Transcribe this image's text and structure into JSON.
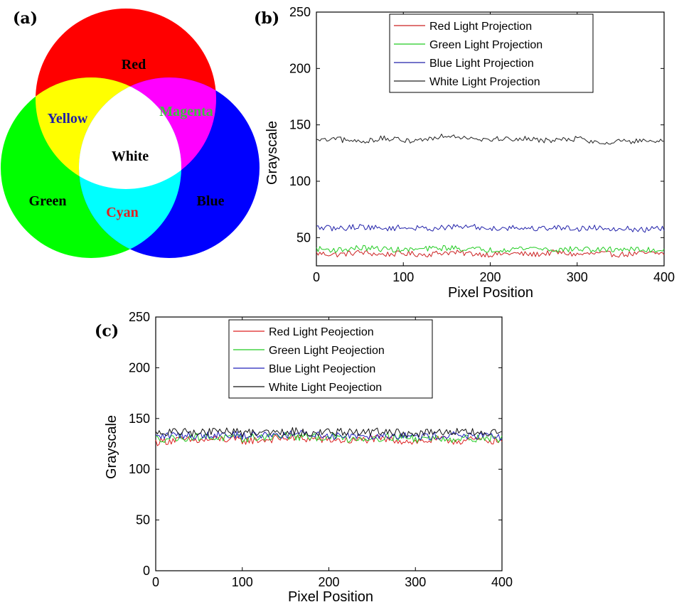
{
  "panel_labels": {
    "a": "(a)",
    "b": "(b)",
    "c": "(c)"
  },
  "venn": {
    "labels": {
      "red": "Red",
      "green": "Green",
      "blue": "Blue",
      "yellow": "Yellow",
      "magenta": "Magenta",
      "cyan": "Cyan",
      "white": "White"
    },
    "colors": {
      "red": "#ff0000",
      "green": "#00ff00",
      "blue": "#0000ff",
      "yellow": "#ffff00",
      "magenta": "#ff00ff",
      "cyan": "#00ffff",
      "white": "#ffffff"
    },
    "label_colors": {
      "red": "#000000",
      "green": "#000000",
      "blue": "#000000",
      "yellow": "#1f1fa8",
      "magenta": "#3fbf3f",
      "cyan": "#e02020",
      "white": "#000000"
    }
  },
  "chart_data": [
    {
      "id": "b",
      "type": "line",
      "xlabel": "Pixel Position",
      "ylabel": "Grayscale",
      "xlim": [
        0,
        400
      ],
      "ylim": [
        25,
        250
      ],
      "xticks": [
        "0",
        "100",
        "200",
        "300",
        "400"
      ],
      "xtick_values": [
        0,
        100,
        200,
        300,
        400
      ],
      "yticks": [
        "50",
        "100",
        "150",
        "200",
        "250"
      ],
      "ytick_values": [
        50,
        100,
        150,
        200,
        250
      ],
      "legend_position": "top-right",
      "x": [
        0,
        25,
        50,
        75,
        100,
        125,
        150,
        175,
        200,
        225,
        250,
        275,
        300,
        325,
        350,
        375,
        400
      ],
      "series": [
        {
          "name": "Red Light Projection",
          "color": "#cc2222",
          "values": [
            36,
            35,
            37,
            35,
            36,
            35,
            37,
            36,
            35,
            36,
            35,
            37,
            35,
            36,
            35,
            36,
            36
          ]
        },
        {
          "name": "Green Light Projection",
          "color": "#22cc22",
          "values": [
            40,
            39,
            41,
            40,
            39,
            40,
            41,
            40,
            39,
            40,
            41,
            39,
            40,
            39,
            40,
            39,
            39
          ]
        },
        {
          "name": "Blue Light Projection",
          "color": "#2222aa",
          "values": [
            59,
            58,
            60,
            58,
            59,
            58,
            59,
            60,
            58,
            59,
            58,
            59,
            58,
            59,
            58,
            57,
            58
          ]
        },
        {
          "name": "White Light Projection",
          "color": "#222222",
          "values": [
            136,
            137,
            135,
            138,
            136,
            137,
            141,
            139,
            137,
            138,
            137,
            136,
            138,
            134,
            136,
            135,
            135
          ]
        }
      ]
    },
    {
      "id": "c",
      "type": "line",
      "xlabel": "Pixel Position",
      "ylabel": "Grayscale",
      "xlim": [
        0,
        400
      ],
      "ylim": [
        0,
        250
      ],
      "xticks": [
        "0",
        "100",
        "200",
        "300",
        "400"
      ],
      "xtick_values": [
        0,
        100,
        200,
        300,
        400
      ],
      "yticks": [
        "0",
        "50",
        "100",
        "150",
        "200",
        "250"
      ],
      "ytick_values": [
        0,
        50,
        100,
        150,
        200,
        250
      ],
      "legend_position": "top-center",
      "x": [
        0,
        25,
        50,
        75,
        100,
        125,
        150,
        175,
        200,
        225,
        250,
        275,
        300,
        325,
        350,
        375,
        400
      ],
      "series": [
        {
          "name": "Red Light Peojection",
          "color": "#dd2222",
          "values": [
            127,
            129,
            128,
            130,
            128,
            129,
            131,
            130,
            129,
            128,
            130,
            129,
            127,
            129,
            128,
            129,
            128
          ]
        },
        {
          "name": "Green Light Peojection",
          "color": "#22cc22",
          "values": [
            130,
            131,
            132,
            131,
            130,
            132,
            133,
            131,
            132,
            130,
            131,
            132,
            130,
            131,
            130,
            131,
            130
          ]
        },
        {
          "name": "Blue Light Peojection",
          "color": "#2222bb",
          "values": [
            132,
            134,
            133,
            135,
            133,
            134,
            134,
            135,
            133,
            134,
            133,
            134,
            132,
            133,
            134,
            132,
            132
          ]
        },
        {
          "name": "White Light Peojection",
          "color": "#111111",
          "values": [
            135,
            137,
            136,
            138,
            136,
            137,
            138,
            136,
            137,
            136,
            137,
            136,
            135,
            136,
            137,
            136,
            135
          ]
        }
      ]
    }
  ]
}
